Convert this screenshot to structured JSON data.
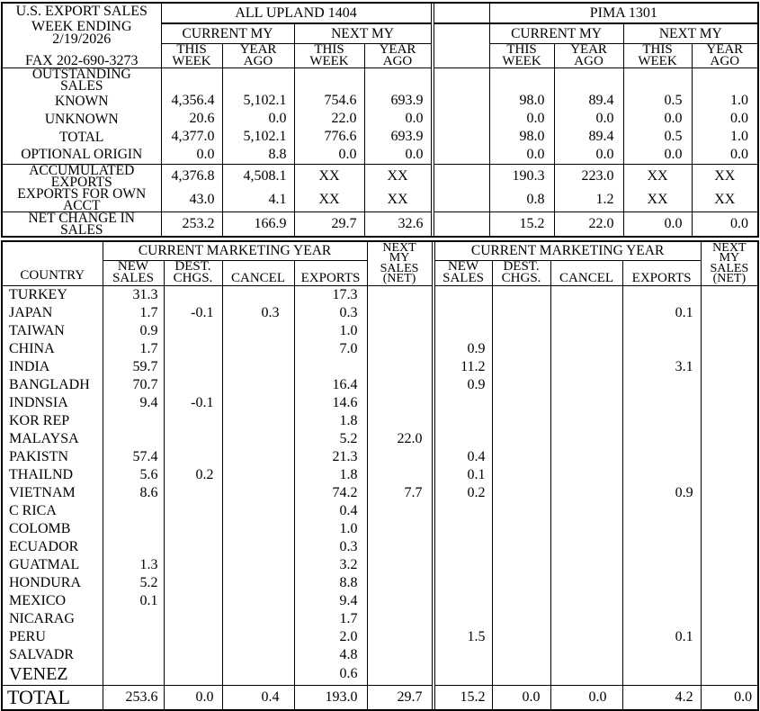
{
  "colors": {
    "ink": "#000000",
    "paper": "#ffffff"
  },
  "report": {
    "title": "U.S. EXPORT SALES",
    "week_ending_label": "WEEK ENDING",
    "week_ending_date": "2/19/2026",
    "fax": "FAX 202-690-3273"
  },
  "top": {
    "upland_title": "ALL UPLAND 1404",
    "pima_title": "PIMA 1301",
    "group_headers": [
      "CURRENT MY",
      "NEXT MY"
    ],
    "sub_this": [
      "THIS",
      "WEEK"
    ],
    "sub_year": [
      "YEAR",
      "AGO"
    ],
    "rows": [
      {
        "label": "OUTSTANDING SALES",
        "label_lines": [
          "OUTSTANDING",
          "SALES"
        ],
        "rule_above": true,
        "upland": [
          "",
          "",
          "",
          ""
        ],
        "pima": [
          "",
          "",
          "",
          ""
        ]
      },
      {
        "label": "KNOWN",
        "label_lines": [
          "KNOWN"
        ],
        "upland": [
          "4,356.4",
          "5,102.1",
          "754.6",
          "693.9"
        ],
        "pima": [
          "98.0",
          "89.4",
          "0.5",
          "1.0"
        ]
      },
      {
        "label": "UNKNOWN",
        "label_lines": [
          "UNKNOWN"
        ],
        "upland": [
          "20.6",
          "0.0",
          "22.0",
          "0.0"
        ],
        "pima": [
          "0.0",
          "0.0",
          "0.0",
          "0.0"
        ]
      },
      {
        "label": "TOTAL",
        "label_lines": [
          "TOTAL"
        ],
        "upland": [
          "4,377.0",
          "5,102.1",
          "776.6",
          "693.9"
        ],
        "pima": [
          "98.0",
          "89.4",
          "0.5",
          "1.0"
        ]
      },
      {
        "label": "OPTIONAL ORIGIN",
        "label_lines": [
          "OPTIONAL ORIGIN"
        ],
        "upland": [
          "0.0",
          "8.8",
          "0.0",
          "0.0"
        ],
        "pima": [
          "0.0",
          "0.0",
          "0.0",
          "0.0"
        ]
      },
      {
        "label": "ACCUMULATED EXPORTS",
        "label_lines": [
          "ACCUMULATED",
          "EXPORTS"
        ],
        "rule_above": true,
        "upland": [
          "4,376.8",
          "4,508.1",
          "XX",
          "XX"
        ],
        "pima": [
          "190.3",
          "223.0",
          "XX",
          "XX"
        ]
      },
      {
        "label": "EXPORTS FOR OWN ACCT",
        "label_lines": [
          "EXPORTS FOR OWN",
          "ACCT"
        ],
        "upland": [
          "43.0",
          "4.1",
          "XX",
          "XX"
        ],
        "pima": [
          "0.8",
          "1.2",
          "XX",
          "XX"
        ]
      },
      {
        "label": "NET CHANGE IN SALES",
        "label_lines": [
          "NET CHANGE IN",
          "SALES"
        ],
        "rule_above": true,
        "upland": [
          "253.2",
          "166.9",
          "29.7",
          "32.6"
        ],
        "pima": [
          "15.2",
          "22.0",
          "0.0",
          "0.0"
        ]
      }
    ]
  },
  "bottom": {
    "country_header": "COUNTRY",
    "cmy_title": "CURRENT MARKETING YEAR",
    "next_my_lines": [
      "NEXT",
      "MY",
      "SALES",
      "(NET)"
    ],
    "col_headers": [
      [
        "NEW",
        "SALES"
      ],
      [
        "DEST.",
        "CHGS."
      ],
      [
        "CANCEL"
      ],
      [
        "EXPORTS"
      ]
    ],
    "countries": [
      {
        "name": "TURKEY",
        "upland": [
          "31.3",
          "",
          "",
          "17.3",
          ""
        ],
        "pima": [
          "",
          "",
          "",
          "",
          ""
        ]
      },
      {
        "name": "JAPAN",
        "upland": [
          "1.7",
          "-0.1",
          "0.3",
          "0.3",
          ""
        ],
        "pima": [
          "",
          "",
          "",
          "0.1",
          ""
        ]
      },
      {
        "name": "TAIWAN",
        "upland": [
          "0.9",
          "",
          "",
          "1.0",
          ""
        ],
        "pima": [
          "",
          "",
          "",
          "",
          ""
        ]
      },
      {
        "name": "CHINA",
        "upland": [
          "1.7",
          "",
          "",
          "7.0",
          ""
        ],
        "pima": [
          "0.9",
          "",
          "",
          "",
          ""
        ]
      },
      {
        "name": "INDIA",
        "upland": [
          "59.7",
          "",
          "",
          "",
          ""
        ],
        "pima": [
          "11.2",
          "",
          "",
          "3.1",
          ""
        ]
      },
      {
        "name": "BANGLADH",
        "upland": [
          "70.7",
          "",
          "",
          "16.4",
          ""
        ],
        "pima": [
          "0.9",
          "",
          "",
          "",
          ""
        ]
      },
      {
        "name": "INDNSIA",
        "upland": [
          "9.4",
          "-0.1",
          "",
          "14.6",
          ""
        ],
        "pima": [
          "",
          "",
          "",
          "",
          ""
        ]
      },
      {
        "name": "KOR REP",
        "upland": [
          "",
          "",
          "",
          "1.8",
          ""
        ],
        "pima": [
          "",
          "",
          "",
          "",
          ""
        ]
      },
      {
        "name": "MALAYSA",
        "upland": [
          "",
          "",
          "",
          "5.2",
          "22.0"
        ],
        "pima": [
          "",
          "",
          "",
          "",
          ""
        ]
      },
      {
        "name": "PAKISTN",
        "upland": [
          "57.4",
          "",
          "",
          "21.3",
          ""
        ],
        "pima": [
          "0.4",
          "",
          "",
          "",
          ""
        ]
      },
      {
        "name": "THAILND",
        "upland": [
          "5.6",
          "0.2",
          "",
          "1.8",
          ""
        ],
        "pima": [
          "0.1",
          "",
          "",
          "",
          ""
        ]
      },
      {
        "name": "VIETNAM",
        "upland": [
          "8.6",
          "",
          "",
          "74.2",
          "7.7"
        ],
        "pima": [
          "0.2",
          "",
          "",
          "0.9",
          ""
        ]
      },
      {
        "name": "C RICA",
        "upland": [
          "",
          "",
          "",
          "0.4",
          ""
        ],
        "pima": [
          "",
          "",
          "",
          "",
          ""
        ]
      },
      {
        "name": "COLOMB",
        "upland": [
          "",
          "",
          "",
          "1.0",
          ""
        ],
        "pima": [
          "",
          "",
          "",
          "",
          ""
        ]
      },
      {
        "name": "ECUADOR",
        "upland": [
          "",
          "",
          "",
          "0.3",
          ""
        ],
        "pima": [
          "",
          "",
          "",
          "",
          ""
        ]
      },
      {
        "name": "GUATMAL",
        "upland": [
          "1.3",
          "",
          "",
          "3.2",
          ""
        ],
        "pima": [
          "",
          "",
          "",
          "",
          ""
        ]
      },
      {
        "name": "HONDURA",
        "upland": [
          "5.2",
          "",
          "",
          "8.8",
          ""
        ],
        "pima": [
          "",
          "",
          "",
          "",
          ""
        ]
      },
      {
        "name": "MEXICO",
        "upland": [
          "0.1",
          "",
          "",
          "9.4",
          ""
        ],
        "pima": [
          "",
          "",
          "",
          "",
          ""
        ]
      },
      {
        "name": "NICARAG",
        "upland": [
          "",
          "",
          "",
          "1.7",
          ""
        ],
        "pima": [
          "",
          "",
          "",
          "",
          ""
        ]
      },
      {
        "name": "PERU",
        "upland": [
          "",
          "",
          "",
          "2.0",
          ""
        ],
        "pima": [
          "1.5",
          "",
          "",
          "0.1",
          ""
        ]
      },
      {
        "name": "SALVADR",
        "upland": [
          "",
          "",
          "",
          "4.8",
          ""
        ],
        "pima": [
          "",
          "",
          "",
          "",
          ""
        ]
      },
      {
        "name": "VENEZ",
        "upland": [
          "",
          "",
          "",
          "0.6",
          ""
        ],
        "pima": [
          "",
          "",
          "",
          "",
          ""
        ],
        "large": true
      }
    ],
    "total": {
      "label": "TOTAL",
      "upland": [
        "253.6",
        "0.0",
        "0.4",
        "193.0",
        "29.7"
      ],
      "pima": [
        "15.2",
        "0.0",
        "0.0",
        "4.2",
        "0.0"
      ]
    }
  }
}
